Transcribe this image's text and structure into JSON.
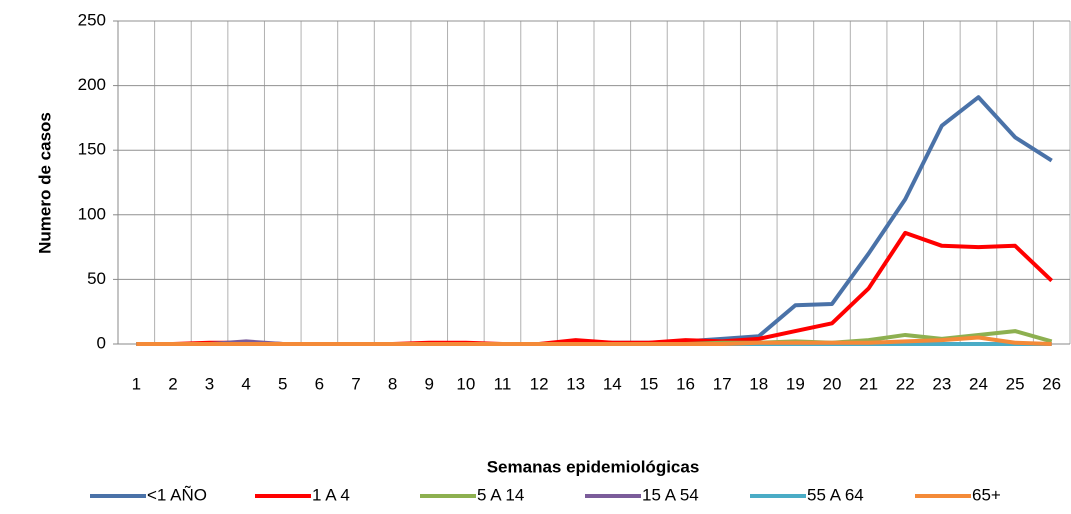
{
  "chart_data": {
    "type": "line",
    "x_label": "Semanas epidemiológicas",
    "y_label": "Numero de casos",
    "categories": [
      "1",
      "2",
      "3",
      "4",
      "5",
      "6",
      "7",
      "8",
      "9",
      "10",
      "11",
      "12",
      "13",
      "14",
      "15",
      "16",
      "17",
      "18",
      "19",
      "20",
      "21",
      "22",
      "23",
      "24",
      "25",
      "26"
    ],
    "series": [
      {
        "name": "<1 AÑO",
        "color": "#4a72a8",
        "values": [
          0,
          0,
          0,
          1,
          0,
          0,
          0,
          0,
          0,
          0,
          0,
          0,
          1,
          1,
          1,
          2,
          4,
          6,
          30,
          31,
          70,
          112,
          169,
          191,
          160,
          142
        ]
      },
      {
        "name": "1 A 4",
        "color": "#ff0000",
        "values": [
          0,
          0,
          1,
          1,
          0,
          0,
          0,
          0,
          1,
          1,
          0,
          0,
          3,
          1,
          1,
          3,
          2,
          4,
          10,
          16,
          43,
          86,
          76,
          75,
          76,
          49
        ]
      },
      {
        "name": "5 A 14",
        "color": "#8db050",
        "values": [
          0,
          0,
          0,
          0,
          0,
          0,
          0,
          0,
          0,
          0,
          0,
          0,
          0,
          0,
          0,
          0,
          1,
          1,
          2,
          1,
          3,
          7,
          4,
          7,
          10,
          2
        ]
      },
      {
        "name": "15 A 54",
        "color": "#7b5c9a",
        "values": [
          0,
          0,
          0,
          2,
          0,
          0,
          0,
          0,
          0,
          0,
          0,
          0,
          0,
          0,
          0,
          0,
          0,
          0,
          0,
          0,
          0,
          0,
          0,
          0,
          0,
          0
        ]
      },
      {
        "name": "55 A 64",
        "color": "#4aacc6",
        "values": [
          0,
          0,
          0,
          0,
          0,
          0,
          0,
          0,
          0,
          0,
          0,
          0,
          0,
          0,
          0,
          0,
          0,
          0,
          0,
          0,
          0,
          0,
          0,
          0,
          0,
          0
        ]
      },
      {
        "name": "65+",
        "color": "#f48a38",
        "values": [
          0,
          0,
          0,
          0,
          0,
          0,
          0,
          0,
          0,
          0,
          0,
          0,
          0,
          0,
          0,
          0,
          0,
          1,
          1,
          1,
          1,
          2,
          3,
          5,
          1,
          0
        ]
      }
    ],
    "ylim": [
      0,
      250
    ],
    "yticks": [
      0,
      50,
      100,
      150,
      200,
      250
    ],
    "grid": true,
    "legend": "bottom"
  }
}
